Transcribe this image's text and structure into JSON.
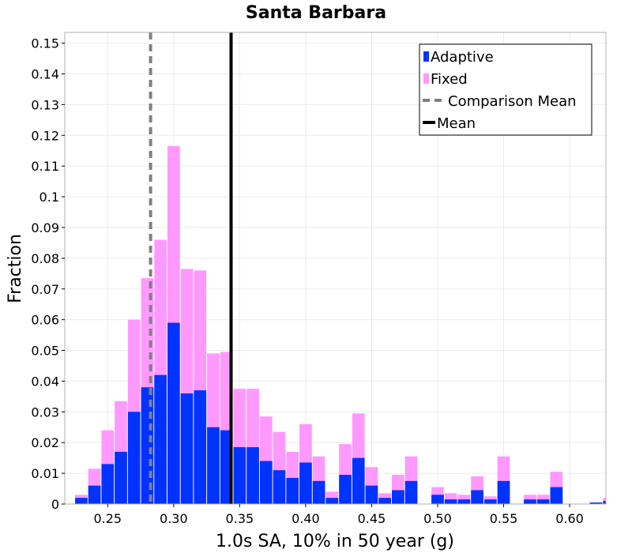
{
  "chart_data": {
    "type": "bar",
    "title": "Santa Barbara",
    "xlabel": "1.0s SA, 10% in 50 year (g)",
    "ylabel": "Fraction",
    "xlim": [
      0.2175,
      0.6275
    ],
    "ylim": [
      0,
      0.1535
    ],
    "bin_width": 0.01,
    "grid": true,
    "x_ticks": [
      0.25,
      0.3,
      0.35,
      0.4,
      0.45,
      0.5,
      0.55,
      0.6
    ],
    "x_tick_labels": [
      "0.25",
      "0.30",
      "0.35",
      "0.40",
      "0.45",
      "0.50",
      "0.55",
      "0.60"
    ],
    "y_ticks": [
      0,
      0.01,
      0.02,
      0.03,
      0.04,
      0.05,
      0.06,
      0.07,
      0.08,
      0.09,
      0.1,
      0.11,
      0.12,
      0.13,
      0.14,
      0.15
    ],
    "y_tick_labels": [
      "0",
      "0.01",
      "0.02",
      "0.03",
      "0.04",
      "0.05",
      "0.06",
      "0.07",
      "0.08",
      "0.09",
      "0.1",
      "0.11",
      "0.12",
      "0.13",
      "0.14",
      "0.15"
    ],
    "legend_position": "top-right",
    "series": [
      {
        "name": "Adaptive",
        "color": "#0033ff",
        "bin_start": [
          0.225,
          0.235,
          0.245,
          0.255,
          0.265,
          0.275,
          0.285,
          0.295,
          0.305,
          0.315,
          0.325,
          0.335,
          0.345,
          0.355,
          0.365,
          0.375,
          0.385,
          0.395,
          0.405,
          0.415,
          0.425,
          0.435,
          0.445,
          0.455,
          0.465,
          0.475,
          0.485,
          0.495,
          0.505,
          0.515,
          0.525,
          0.535,
          0.545,
          0.555,
          0.565,
          0.575,
          0.585,
          0.595,
          0.605,
          0.615,
          0.625
        ],
        "values": [
          0.002,
          0.006,
          0.013,
          0.017,
          0.03,
          0.038,
          0.042,
          0.059,
          0.036,
          0.037,
          0.025,
          0.024,
          0.0185,
          0.0185,
          0.014,
          0.011,
          0.0085,
          0.0135,
          0.0075,
          0.002,
          0.0095,
          0.015,
          0.006,
          0.002,
          0.0045,
          0.0075,
          0.0,
          0.003,
          0.0015,
          0.0015,
          0.0045,
          0.0015,
          0.0075,
          0.0,
          0.0015,
          0.0015,
          0.0055,
          0.0,
          0.0,
          0.0005,
          0.001
        ]
      },
      {
        "name": "Fixed",
        "color": "#ff99ff",
        "bin_start": [
          0.225,
          0.235,
          0.245,
          0.255,
          0.265,
          0.275,
          0.285,
          0.295,
          0.305,
          0.315,
          0.325,
          0.335,
          0.345,
          0.355,
          0.365,
          0.375,
          0.385,
          0.395,
          0.405,
          0.415,
          0.425,
          0.435,
          0.445,
          0.455,
          0.465,
          0.475,
          0.485,
          0.495,
          0.505,
          0.515,
          0.525,
          0.535,
          0.545,
          0.555,
          0.565,
          0.575,
          0.585,
          0.595,
          0.605,
          0.615,
          0.625
        ],
        "values": [
          0.003,
          0.0115,
          0.024,
          0.0335,
          0.06,
          0.0735,
          0.086,
          0.1165,
          0.0765,
          0.076,
          0.049,
          0.0495,
          0.0375,
          0.0375,
          0.0285,
          0.0235,
          0.017,
          0.026,
          0.0155,
          0.004,
          0.0195,
          0.0295,
          0.012,
          0.0035,
          0.0095,
          0.0155,
          0.0,
          0.0055,
          0.0035,
          0.003,
          0.009,
          0.0025,
          0.0155,
          0.0,
          0.003,
          0.003,
          0.0105,
          0.0,
          0.0,
          0.0005,
          0.002
        ]
      }
    ],
    "reference_lines": [
      {
        "name": "Comparison Mean",
        "x": 0.2825,
        "color": "#808080",
        "style": "dashed"
      },
      {
        "name": "Mean",
        "x": 0.3435,
        "color": "#000000",
        "style": "solid"
      }
    ],
    "legend": [
      "Adaptive",
      "Fixed",
      "Comparison Mean",
      "Mean"
    ]
  }
}
